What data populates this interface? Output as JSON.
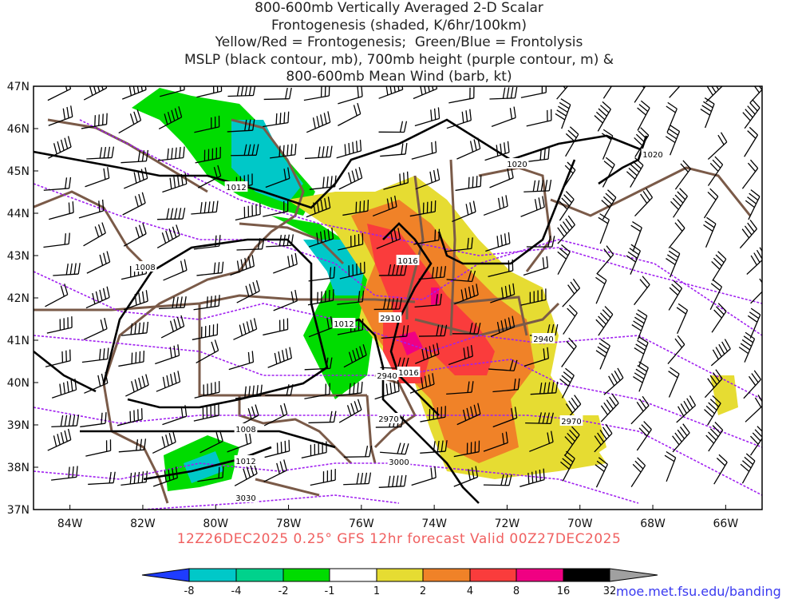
{
  "title": {
    "lines": [
      "800-600mb Vertically Averaged 2-D Scalar",
      "Frontogenesis (shaded, K/6hr/100km)",
      "Yellow/Red = Frontogenesis;  Green/Blue = Frontolysis",
      "MSLP (black contour, mb), 700mb height (purple contour, m) &",
      "800-600mb Mean Wind (barb, kt)"
    ]
  },
  "map": {
    "lat_labels": [
      "47N",
      "46N",
      "45N",
      "44N",
      "43N",
      "42N",
      "41N",
      "40N",
      "39N",
      "38N",
      "37N"
    ],
    "lon_labels": [
      "84W",
      "82W",
      "80W",
      "78W",
      "76W",
      "74W",
      "72W",
      "70W",
      "68W",
      "66W"
    ],
    "lat_range": [
      37,
      47
    ],
    "lon_range": [
      -85,
      -65
    ],
    "mslp_labels": [
      "1020",
      "1020",
      "1012",
      "1008",
      "1016",
      "1012",
      "1016",
      "1008",
      "1012"
    ],
    "height_labels": [
      "2910",
      "2940",
      "2940",
      "2970",
      "2970",
      "3000",
      "3030"
    ],
    "colors": {
      "mslp": "#000000",
      "height": "#a020f0",
      "borders": "#7a5a48"
    }
  },
  "valid_line": "12Z26DEC2025 0.25° GFS 12hr forecast Valid 00Z27DEC2025",
  "colorbar": {
    "ticks": [
      "-8",
      "-4",
      "-2",
      "-1",
      "1",
      "2",
      "4",
      "8",
      "16",
      "32"
    ],
    "colors": [
      "#1e3cff",
      "#00c8c8",
      "#00d28c",
      "#00dc00",
      "#ffffff",
      "#e6dc32",
      "#f08228",
      "#fa3c3c",
      "#f00082",
      "#000000",
      "#a0a0a0"
    ]
  },
  "credit": "moe.met.fsu.edu/banding"
}
